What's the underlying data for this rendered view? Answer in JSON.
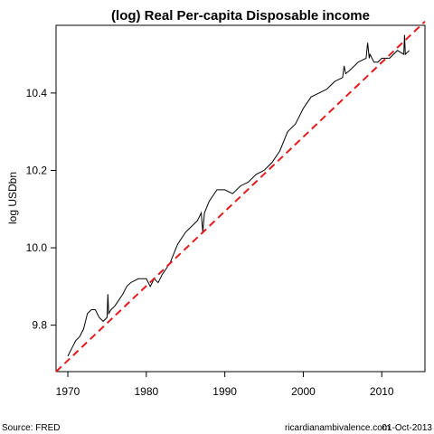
{
  "chart_data": {
    "type": "line",
    "title": "(log) Real Per-capita Disposable income",
    "xlabel": "",
    "ylabel": "log USDbn",
    "xlim": [
      1968.5,
      2015.5
    ],
    "ylim": [
      9.68,
      10.575
    ],
    "x_ticks": [
      1970,
      1980,
      1990,
      2000,
      2010
    ],
    "y_ticks": [
      9.8,
      10.0,
      10.2,
      10.4
    ],
    "y_tick_labels": [
      "9.8",
      "10.0",
      "10.2",
      "10.4"
    ],
    "grid": false,
    "series": [
      {
        "style": "solid",
        "color": "#000000",
        "x": [
          1970.0,
          1970.5,
          1971.0,
          1971.5,
          1972.0,
          1972.5,
          1973.0,
          1973.5,
          1974.0,
          1974.5,
          1975.0,
          1975.1,
          1975.2,
          1975.5,
          1976.0,
          1977.0,
          1977.5,
          1978.0,
          1979.0,
          1980.0,
          1980.5,
          1981.0,
          1981.5,
          1982.0,
          1983.0,
          1984.0,
          1985.0,
          1986.0,
          1986.5,
          1987.0,
          1987.2,
          1987.4,
          1988.0,
          1989.0,
          1990.0,
          1991.0,
          1992.0,
          1993.0,
          1994.0,
          1995.0,
          1996.0,
          1997.0,
          1998.0,
          1999.0,
          2000.0,
          2001.0,
          2002.0,
          2003.0,
          2004.0,
          2005.0,
          2005.2,
          2005.4,
          2006.0,
          2007.0,
          2008.0,
          2008.2,
          2008.4,
          2008.5,
          2009.0,
          2009.5,
          2010.0,
          2011.0,
          2012.0,
          2012.8,
          2012.9,
          2013.0,
          2013.5
        ],
        "y": [
          9.72,
          9.74,
          9.76,
          9.77,
          9.79,
          9.83,
          9.84,
          9.84,
          9.82,
          9.81,
          9.82,
          9.88,
          9.83,
          9.84,
          9.85,
          9.88,
          9.9,
          9.91,
          9.92,
          9.92,
          9.9,
          9.92,
          9.91,
          9.93,
          9.96,
          10.01,
          10.04,
          10.06,
          10.07,
          10.09,
          10.04,
          10.09,
          10.12,
          10.15,
          10.15,
          10.14,
          10.16,
          10.17,
          10.19,
          10.2,
          10.22,
          10.25,
          10.3,
          10.32,
          10.36,
          10.39,
          10.4,
          10.41,
          10.43,
          10.44,
          10.47,
          10.45,
          10.46,
          10.48,
          10.49,
          10.53,
          10.49,
          10.5,
          10.48,
          10.48,
          10.49,
          10.49,
          10.51,
          10.5,
          10.55,
          10.5,
          10.51
        ]
      },
      {
        "style": "dashed",
        "color": "#e41a1c",
        "x": [
          1968.5,
          2015.5
        ],
        "y": [
          9.68,
          10.585
        ]
      }
    ]
  },
  "footer": {
    "source": "Source: FRED",
    "credit": "ricardianambivalence.com",
    "date": "01-Oct-2013"
  }
}
